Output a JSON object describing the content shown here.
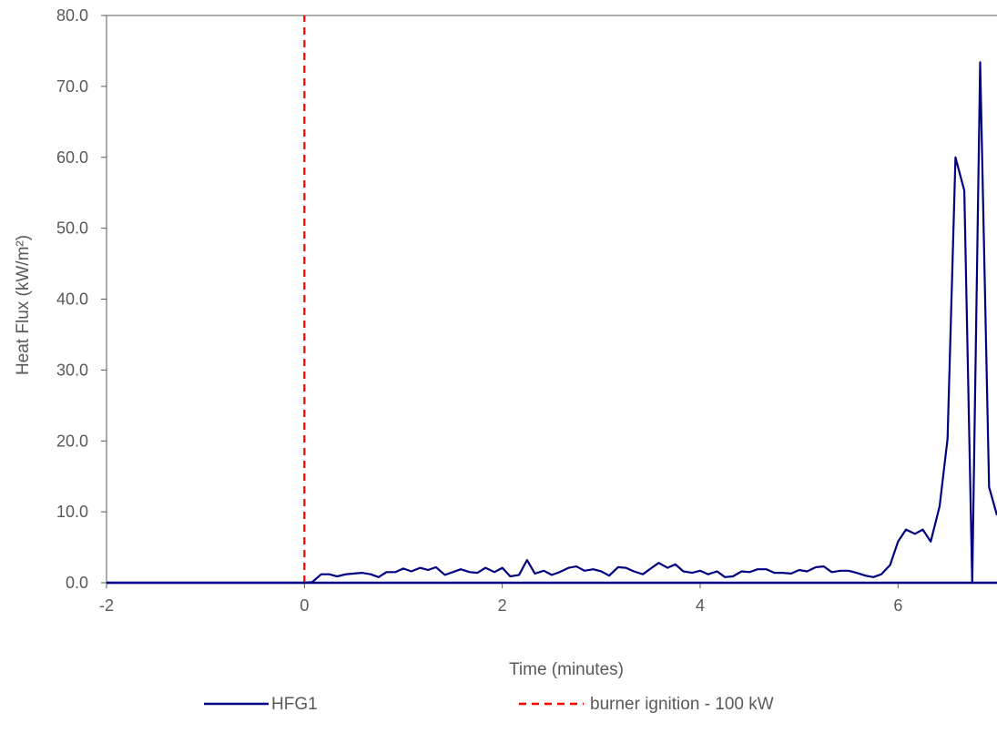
{
  "chart_data": {
    "type": "line",
    "title": "",
    "xlabel": "Time (minutes)",
    "ylabel": "Heat Flux (kW/m²)",
    "xlim": [
      -2,
      7
    ],
    "ylim": [
      0,
      80
    ],
    "x_ticks": [
      -2,
      0,
      2,
      4,
      6
    ],
    "x_tick_labels": [
      "-2",
      "0",
      "2",
      "4",
      "6"
    ],
    "y_ticks": [
      0,
      10,
      20,
      30,
      40,
      50,
      60,
      70,
      80
    ],
    "y_tick_labels": [
      "0.0",
      "10.0",
      "20.0",
      "30.0",
      "40.0",
      "50.0",
      "60.0",
      "70.0",
      "80.0"
    ],
    "grid": false,
    "legend_position": "bottom",
    "series": [
      {
        "name": "HFG1",
        "color": "#000080",
        "style": "solid",
        "x": [
          -2,
          -1.5,
          -1,
          -0.5,
          0,
          0.08,
          0.17,
          0.25,
          0.33,
          0.42,
          0.5,
          0.58,
          0.67,
          0.75,
          0.83,
          0.92,
          1.0,
          1.08,
          1.17,
          1.25,
          1.33,
          1.42,
          1.5,
          1.58,
          1.67,
          1.75,
          1.83,
          1.92,
          2.0,
          2.08,
          2.17,
          2.25,
          2.33,
          2.42,
          2.5,
          2.58,
          2.67,
          2.75,
          2.83,
          2.92,
          3.0,
          3.08,
          3.17,
          3.25,
          3.33,
          3.42,
          3.5,
          3.58,
          3.67,
          3.75,
          3.83,
          3.92,
          4.0,
          4.08,
          4.17,
          4.25,
          4.33,
          4.42,
          4.5,
          4.58,
          4.67,
          4.75,
          4.83,
          4.92,
          5.0,
          5.08,
          5.17,
          5.25,
          5.33,
          5.42,
          5.5,
          5.58,
          5.67,
          5.75,
          5.83,
          5.92,
          6.0,
          6.08,
          6.17,
          6.25,
          6.33,
          6.42,
          6.5,
          6.58,
          6.67,
          6.75,
          6.83,
          6.92,
          7.0
        ],
        "y": [
          0,
          0,
          0,
          0,
          0,
          0.1,
          1.2,
          1.2,
          0.9,
          1.2,
          1.3,
          1.4,
          1.2,
          0.8,
          1.5,
          1.5,
          2.0,
          1.6,
          2.1,
          1.8,
          2.2,
          1.1,
          1.5,
          1.9,
          1.5,
          1.4,
          2.1,
          1.5,
          2.1,
          0.9,
          1.1,
          3.2,
          1.3,
          1.7,
          1.1,
          1.5,
          2.1,
          2.3,
          1.7,
          1.9,
          1.6,
          1.0,
          2.2,
          2.1,
          1.6,
          1.2,
          2.0,
          2.8,
          2.1,
          2.6,
          1.6,
          1.4,
          1.7,
          1.2,
          1.6,
          0.8,
          0.9,
          1.6,
          1.5,
          1.9,
          1.9,
          1.4,
          1.4,
          1.3,
          1.8,
          1.6,
          2.2,
          2.3,
          1.5,
          1.7,
          1.7,
          1.4,
          1.0,
          0.8,
          1.2,
          2.5,
          5.8,
          7.5,
          6.9,
          7.5,
          5.8,
          10.8,
          20.3,
          60.0,
          55.3,
          0.0,
          73.4,
          13.5,
          9.5
        ]
      },
      {
        "name": "burner ignition - 100 kW",
        "color": "#ff0000",
        "style": "dashed",
        "x": [
          0,
          0
        ],
        "y": [
          0,
          80
        ]
      }
    ]
  }
}
